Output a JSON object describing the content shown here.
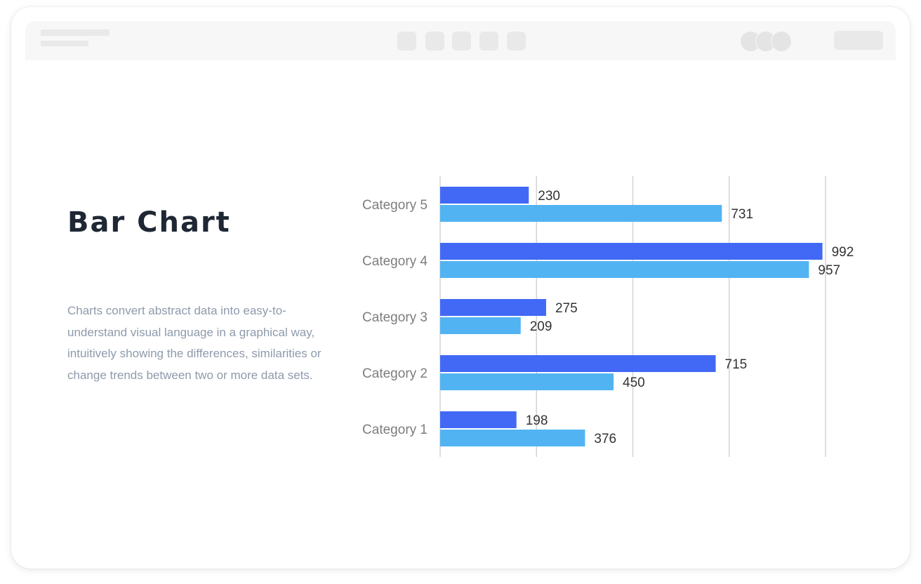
{
  "title": "Bar Chart",
  "description": "Charts convert abstract data into easy-to-understand visual language in a graphical way, intuitively showing the differences, similarities or change trends between two or more data sets.",
  "colors": {
    "series_a": "#4169f5",
    "series_b": "#52b3f2",
    "grid": "#d4d4d4",
    "title": "#1e2733",
    "description": "#8e9aab"
  },
  "chart_data": {
    "type": "bar",
    "orientation": "horizontal",
    "categories": [
      "Category 1",
      "Category 2",
      "Category 3",
      "Category 4",
      "Category 5"
    ],
    "series": [
      {
        "values": [
          198,
          715,
          275,
          992,
          230
        ]
      },
      {
        "values": [
          376,
          450,
          209,
          957,
          731
        ]
      }
    ],
    "xlim": [
      0,
      1000
    ],
    "grid": true,
    "legend": "none",
    "data_labels": true
  }
}
